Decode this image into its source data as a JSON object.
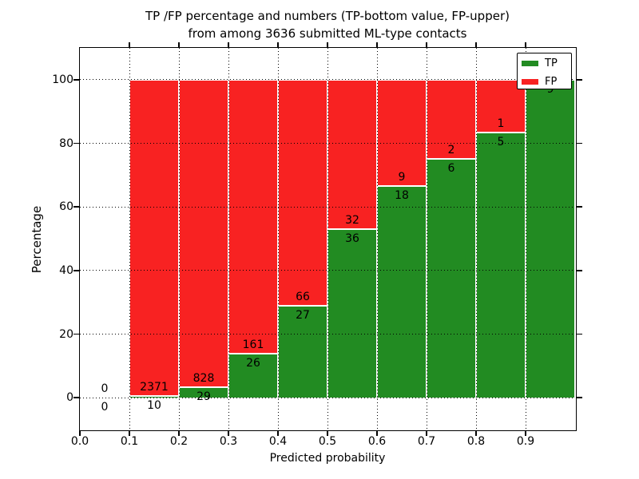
{
  "title": {
    "line1": "TP /FP percentage and numbers (TP-bottom value, FP-upper)",
    "line2": "from among 3636 submitted ML-type contacts"
  },
  "axes": {
    "xlabel": "Predicted probability",
    "ylabel": "Percentage",
    "x_tick_labels": [
      "0.0",
      "0.1",
      "0.2",
      "0.3",
      "0.4",
      "0.5",
      "0.6",
      "0.7",
      "0.8",
      "0.9"
    ],
    "y_tick_labels": [
      "0",
      "20",
      "40",
      "60",
      "80",
      "100"
    ]
  },
  "colors": {
    "tp": "#228B22",
    "fp": "#F82222",
    "grid": "#000000",
    "text": "#000000",
    "background": "#FFFFFF"
  },
  "chart_data": {
    "type": "bar",
    "stacked": true,
    "grid": true,
    "legend_position": "upper right",
    "title": "TP /FP percentage and numbers (TP-bottom value, FP-upper) from among 3636 submitted ML-type contacts",
    "xlabel": "Predicted probability",
    "ylabel": "Percentage",
    "xlim": [
      0.0,
      1.0
    ],
    "ylim": [
      -10,
      110
    ],
    "y_axis_unit": "percent of bin total",
    "total_contacts": 3636,
    "bin_edges": [
      0.0,
      0.1,
      0.2,
      0.3,
      0.4,
      0.5,
      0.6,
      0.7,
      0.8,
      0.9,
      1.0
    ],
    "series": [
      {
        "name": "TP",
        "color": "#228B22",
        "values": [
          0,
          10,
          29,
          26,
          27,
          36,
          18,
          6,
          5,
          9
        ]
      },
      {
        "name": "FP",
        "color": "#F82222",
        "values": [
          0,
          2371,
          828,
          161,
          66,
          32,
          9,
          2,
          1,
          0
        ]
      }
    ],
    "bar_value_labels": [
      {
        "tp": "0",
        "fp": "0"
      },
      {
        "tp": "10",
        "fp": "2371"
      },
      {
        "tp": "29",
        "fp": "828"
      },
      {
        "tp": "26",
        "fp": "161"
      },
      {
        "tp": "27",
        "fp": "66"
      },
      {
        "tp": "36",
        "fp": "32"
      },
      {
        "tp": "18",
        "fp": "9"
      },
      {
        "tp": "6",
        "fp": "2"
      },
      {
        "tp": "5",
        "fp": "1"
      },
      {
        "tp": "9",
        "fp": null
      }
    ]
  }
}
